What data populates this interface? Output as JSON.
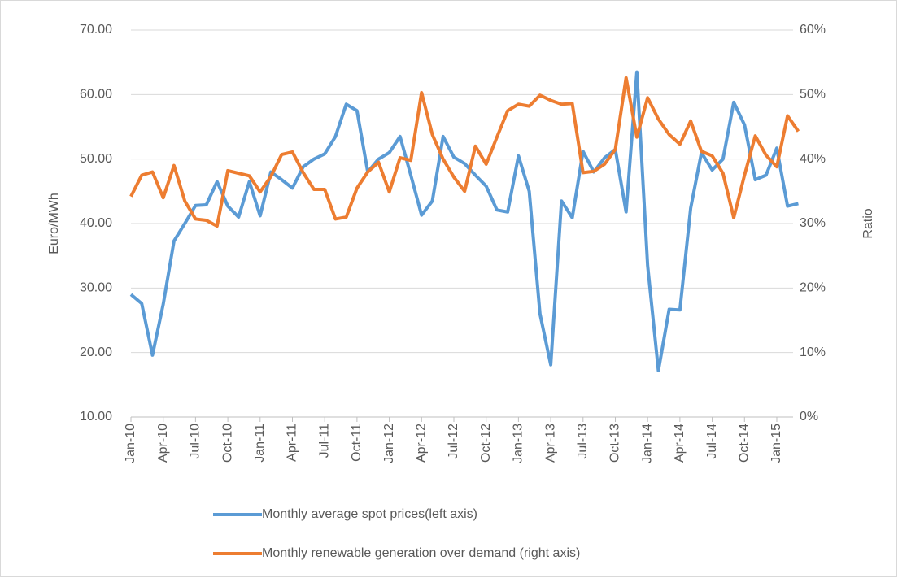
{
  "chart_data": {
    "type": "line",
    "y_label": "Euro/MWh",
    "y2_label": "Ratio",
    "categories": [
      "Jan-10",
      null,
      null,
      "Apr-10",
      null,
      null,
      "Jul-10",
      null,
      null,
      "Oct-10",
      null,
      null,
      "Jan-11",
      null,
      null,
      "Apr-11",
      null,
      null,
      "Jul-11",
      null,
      null,
      "Oct-11",
      null,
      null,
      "Jan-12",
      null,
      null,
      "Apr-12",
      null,
      null,
      "Jul-12",
      null,
      null,
      "Oct-12",
      null,
      null,
      "Jan-13",
      null,
      null,
      "Apr-13",
      null,
      null,
      "Jul-13",
      null,
      null,
      "Oct-13",
      null,
      null,
      "Jan-14",
      null,
      null,
      "Apr-14",
      null,
      null,
      "Jul-14",
      null,
      null,
      "Oct-14",
      null,
      null,
      "Jan-15",
      null,
      null
    ],
    "series": [
      {
        "name": "Monthly average spot prices(left axis)",
        "color": "#5b9bd5",
        "axis": "y",
        "values": [
          29.0,
          27.6,
          19.6,
          27.5,
          37.3,
          40.0,
          42.8,
          42.9,
          46.5,
          42.7,
          41.0,
          46.5,
          41.2,
          48.0,
          46.8,
          45.5,
          48.8,
          50.0,
          50.8,
          53.5,
          58.5,
          57.5,
          48.0,
          50.0,
          51.0,
          53.5,
          47.5,
          41.3,
          43.5,
          53.5,
          50.3,
          49.3,
          47.5,
          45.8,
          42.1,
          41.8,
          50.5,
          45.0,
          26.0,
          18.1,
          43.5,
          40.9,
          51.2,
          48.0,
          50.2,
          51.5,
          41.8,
          63.5,
          33.5,
          17.2,
          26.7,
          26.6,
          42.4,
          51.0,
          48.3,
          50.0,
          58.8,
          55.3,
          46.8,
          47.5,
          51.7,
          42.7,
          43.1
        ]
      },
      {
        "name": "Monthly renewable generation over demand (right axis)",
        "color": "#ed7d31",
        "axis": "y2",
        "values": [
          34.2,
          37.5,
          38.0,
          34.0,
          39.0,
          33.5,
          30.7,
          30.5,
          29.6,
          38.2,
          37.8,
          37.4,
          34.9,
          37.3,
          40.7,
          41.1,
          37.9,
          35.3,
          35.3,
          30.7,
          31.0,
          35.5,
          38.0,
          39.5,
          34.9,
          40.2,
          39.8,
          50.3,
          43.8,
          40.0,
          37.2,
          35.0,
          42.0,
          39.2,
          43.4,
          47.5,
          48.5,
          48.2,
          49.9,
          49.1,
          48.5,
          48.6,
          37.9,
          38.1,
          39.2,
          41.5,
          52.6,
          43.4,
          49.5,
          46.2,
          43.8,
          42.3,
          45.9,
          41.2,
          40.5,
          37.8,
          30.9,
          37.5,
          43.6,
          40.6,
          38.8,
          46.7,
          44.3
        ]
      }
    ],
    "ylim": [
      10,
      70
    ],
    "yticks": [
      {
        "value": 10,
        "label": "10.00"
      },
      {
        "value": 20,
        "label": "20.00"
      },
      {
        "value": 30,
        "label": "30.00"
      },
      {
        "value": 40,
        "label": "40.00"
      },
      {
        "value": 50,
        "label": "50.00"
      },
      {
        "value": 60,
        "label": "60.00"
      },
      {
        "value": 70,
        "label": "70.00"
      }
    ],
    "y2lim": [
      0,
      60
    ],
    "y2ticks": [
      {
        "value": 0,
        "label": "0%"
      },
      {
        "value": 10,
        "label": "10%"
      },
      {
        "value": 20,
        "label": "20%"
      },
      {
        "value": 30,
        "label": "30%"
      },
      {
        "value": 40,
        "label": "40%"
      },
      {
        "value": 50,
        "label": "50%"
      },
      {
        "value": 60,
        "label": "60%"
      }
    ],
    "grid": true,
    "legend": "bottom"
  }
}
